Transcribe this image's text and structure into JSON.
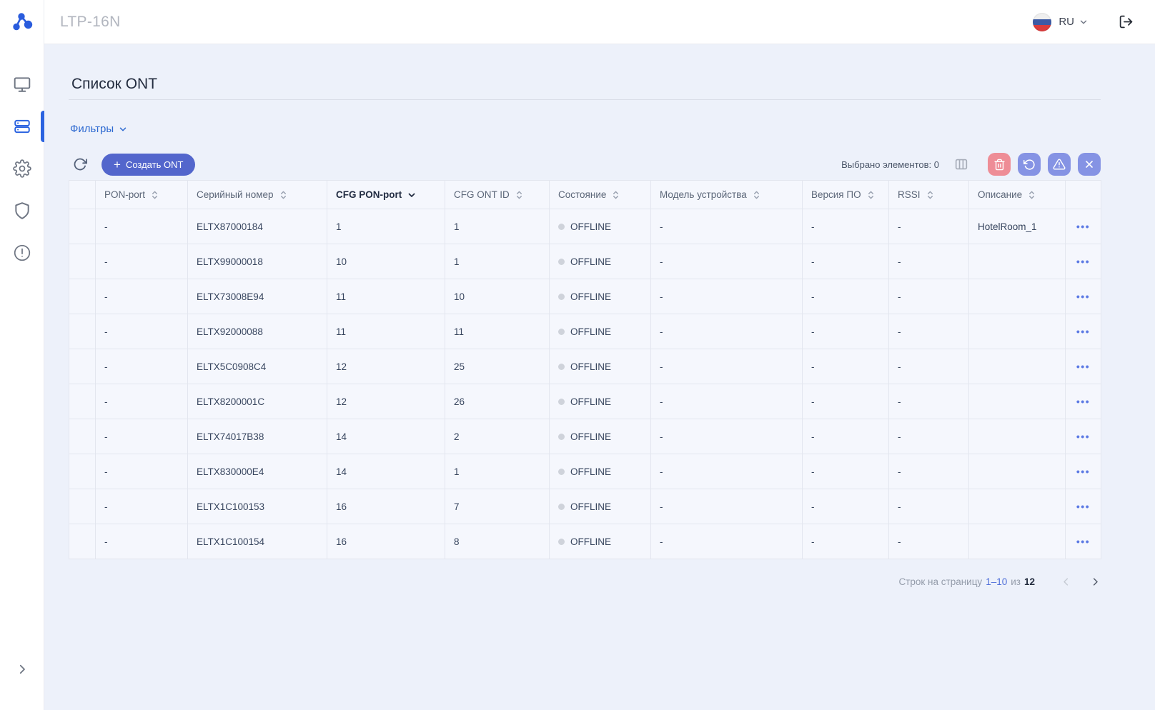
{
  "header": {
    "device_title": "LTP-16N",
    "language": "RU"
  },
  "sidebar": {
    "items": [
      {
        "id": "monitoring",
        "icon": "monitor-icon",
        "active": false
      },
      {
        "id": "ont-list",
        "icon": "servers-icon",
        "active": true
      },
      {
        "id": "settings",
        "icon": "gear-icon",
        "active": false
      },
      {
        "id": "security",
        "icon": "shield-icon",
        "active": false
      },
      {
        "id": "alerts",
        "icon": "alert-circle-icon",
        "active": false
      }
    ]
  },
  "page": {
    "title": "Список ONT",
    "filters_label": "Фильтры"
  },
  "toolbar": {
    "create_button_label": "Создать ONT",
    "selected_count_label": "Выбрано элементов: 0"
  },
  "table": {
    "columns": [
      {
        "key": "pon_port",
        "label": "PON-port",
        "sorted": false
      },
      {
        "key": "serial",
        "label": "Серийный номер",
        "sorted": false
      },
      {
        "key": "cfg_pon_port",
        "label": "CFG PON-port",
        "sorted": true
      },
      {
        "key": "cfg_ont_id",
        "label": "CFG ONT ID",
        "sorted": false
      },
      {
        "key": "state",
        "label": "Состояние",
        "sorted": false
      },
      {
        "key": "model",
        "label": "Модель устройства",
        "sorted": false
      },
      {
        "key": "firmware",
        "label": "Версия ПО",
        "sorted": false
      },
      {
        "key": "rssi",
        "label": "RSSI",
        "sorted": false
      },
      {
        "key": "description",
        "label": "Описание",
        "sorted": false
      }
    ],
    "rows": [
      {
        "pon_port": "-",
        "serial": "ELTX87000184",
        "cfg_pon_port": "1",
        "cfg_ont_id": "1",
        "state": "OFFLINE",
        "model": "-",
        "firmware": "-",
        "rssi": "-",
        "description": "HotelRoom_1"
      },
      {
        "pon_port": "-",
        "serial": "ELTX99000018",
        "cfg_pon_port": "10",
        "cfg_ont_id": "1",
        "state": "OFFLINE",
        "model": "-",
        "firmware": "-",
        "rssi": "-",
        "description": ""
      },
      {
        "pon_port": "-",
        "serial": "ELTX73008E94",
        "cfg_pon_port": "11",
        "cfg_ont_id": "10",
        "state": "OFFLINE",
        "model": "-",
        "firmware": "-",
        "rssi": "-",
        "description": ""
      },
      {
        "pon_port": "-",
        "serial": "ELTX92000088",
        "cfg_pon_port": "11",
        "cfg_ont_id": "11",
        "state": "OFFLINE",
        "model": "-",
        "firmware": "-",
        "rssi": "-",
        "description": ""
      },
      {
        "pon_port": "-",
        "serial": "ELTX5C0908C4",
        "cfg_pon_port": "12",
        "cfg_ont_id": "25",
        "state": "OFFLINE",
        "model": "-",
        "firmware": "-",
        "rssi": "-",
        "description": ""
      },
      {
        "pon_port": "-",
        "serial": "ELTX8200001C",
        "cfg_pon_port": "12",
        "cfg_ont_id": "26",
        "state": "OFFLINE",
        "model": "-",
        "firmware": "-",
        "rssi": "-",
        "description": ""
      },
      {
        "pon_port": "-",
        "serial": "ELTX74017B38",
        "cfg_pon_port": "14",
        "cfg_ont_id": "2",
        "state": "OFFLINE",
        "model": "-",
        "firmware": "-",
        "rssi": "-",
        "description": ""
      },
      {
        "pon_port": "-",
        "serial": "ELTX830000E4",
        "cfg_pon_port": "14",
        "cfg_ont_id": "1",
        "state": "OFFLINE",
        "model": "-",
        "firmware": "-",
        "rssi": "-",
        "description": ""
      },
      {
        "pon_port": "-",
        "serial": "ELTX1C100153",
        "cfg_pon_port": "16",
        "cfg_ont_id": "7",
        "state": "OFFLINE",
        "model": "-",
        "firmware": "-",
        "rssi": "-",
        "description": ""
      },
      {
        "pon_port": "-",
        "serial": "ELTX1C100154",
        "cfg_pon_port": "16",
        "cfg_ont_id": "8",
        "state": "OFFLINE",
        "model": "-",
        "firmware": "-",
        "rssi": "-",
        "description": ""
      }
    ],
    "row_menu_glyph": "•••"
  },
  "pagination": {
    "rows_per_page_label": "Строк на страницу",
    "range": "1–10",
    "of_label": "из",
    "total": "12"
  },
  "colors": {
    "accent_blue": "#2b63e0",
    "button_indigo": "#5366cc",
    "action_soft_indigo": "#8593e4",
    "action_danger": "#ee8d96",
    "link_blue": "#2e6ad1",
    "offline_dot": "#cfd3db",
    "content_bg": "#edf1fa"
  }
}
